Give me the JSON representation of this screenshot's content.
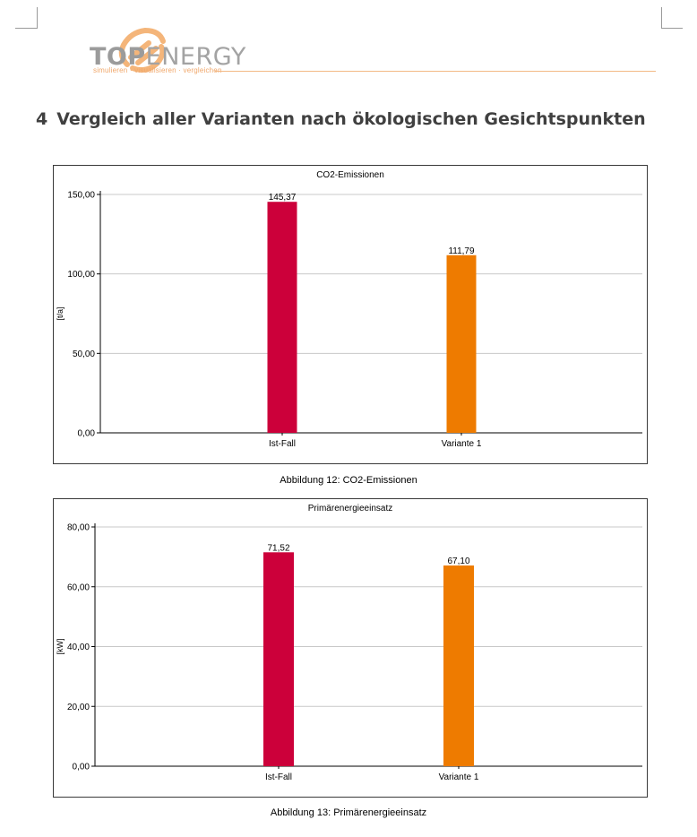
{
  "header": {
    "brand_top": "TOP",
    "brand_energy": "ENERGY",
    "tagline": "simulieren · visualisieren · vergleichen"
  },
  "section": {
    "number": "4",
    "title": "Vergleich aller Varianten nach ökologischen Gesichtspunkten"
  },
  "colors": {
    "ist_fall": "#cc003a",
    "variante": "#ee7b00",
    "grid": "#c8c8c8",
    "logo": "#f4b57a"
  },
  "chart_data": [
    {
      "type": "bar",
      "title": "CO2-Emissionen",
      "ylabel": "[t/a]",
      "xlabel": "",
      "categories": [
        "Ist-Fall",
        "Variante 1"
      ],
      "values": [
        145.37,
        111.79
      ],
      "value_labels": [
        "145,37",
        "111,79"
      ],
      "yticks": [
        0,
        50,
        100,
        150
      ],
      "ytick_labels": [
        "0,00",
        "50,00",
        "100,00",
        "150,00"
      ],
      "ylim": [
        0,
        150
      ],
      "grid": true,
      "legend": "none",
      "caption": "Abbildung 12: CO2-Emissionen"
    },
    {
      "type": "bar",
      "title": "Primärenergieeinsatz",
      "ylabel": "[kW]",
      "xlabel": "",
      "categories": [
        "Ist-Fall",
        "Variante 1"
      ],
      "values": [
        71.52,
        67.1
      ],
      "value_labels": [
        "71,52",
        "67,10"
      ],
      "yticks": [
        0,
        20,
        40,
        60,
        80
      ],
      "ytick_labels": [
        "0,00",
        "20,00",
        "40,00",
        "60,00",
        "80,00"
      ],
      "ylim": [
        0,
        80
      ],
      "grid": true,
      "legend": "none",
      "caption": "Abbildung 13: Primärenergieeinsatz"
    }
  ]
}
